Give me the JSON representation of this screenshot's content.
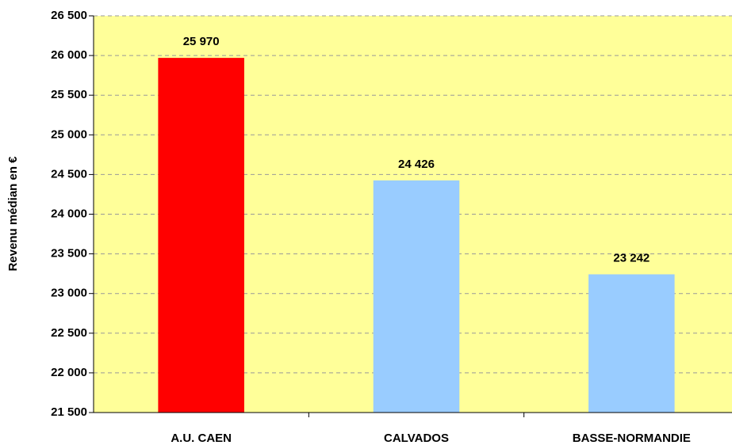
{
  "chart_data": {
    "type": "bar",
    "y_label": "Revenu médian en €",
    "categories": [
      "A.U. CAEN",
      "CALVADOS",
      "BASSE-NORMANDIE"
    ],
    "values": [
      25970,
      24426,
      23242
    ],
    "value_labels": [
      "25 970",
      "24 426",
      "23 242"
    ],
    "colors": [
      "#ff0000",
      "#99ccff",
      "#99ccff"
    ],
    "ylim": [
      21500,
      26500
    ],
    "yticks": [
      {
        "value": 21500,
        "label": "21 500"
      },
      {
        "value": 22000,
        "label": "22 000"
      },
      {
        "value": 22500,
        "label": "22 500"
      },
      {
        "value": 23000,
        "label": "23 000"
      },
      {
        "value": 23500,
        "label": "23 500"
      },
      {
        "value": 24000,
        "label": "24 000"
      },
      {
        "value": 24500,
        "label": "24 500"
      },
      {
        "value": 25000,
        "label": "25 000"
      },
      {
        "value": 25500,
        "label": "25 500"
      },
      {
        "value": 26000,
        "label": "26 000"
      },
      {
        "value": 26500,
        "label": "26 500"
      }
    ],
    "grid": true,
    "background": "#ffff99"
  }
}
